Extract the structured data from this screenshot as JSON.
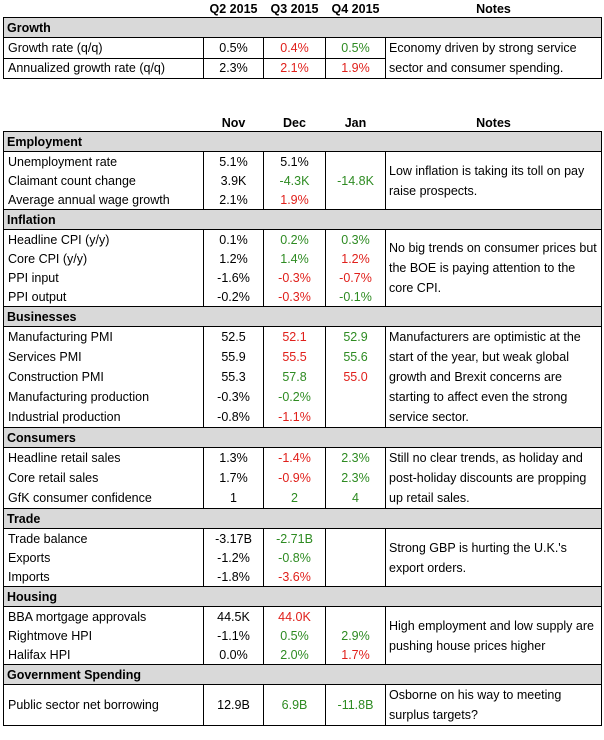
{
  "growth": {
    "section_title": "Growth",
    "columns": [
      "Q2 2015",
      "Q3 2015",
      "Q4 2015",
      "Notes"
    ],
    "rows": [
      {
        "label": "Growth rate (q/q)",
        "v1": "0.5%",
        "v2": "0.4%",
        "v3": "0.5%"
      },
      {
        "label": "Annualized growth rate (q/q)",
        "v1": "2.3%",
        "v2": "2.1%",
        "v3": "1.9%"
      }
    ],
    "note": "Economy driven by strong service sector and consumer spending."
  },
  "monthly": {
    "columns": [
      "Nov",
      "Dec",
      "Jan",
      "Notes"
    ],
    "sections": [
      {
        "title": "Employment",
        "rows": [
          {
            "label": "Unemployment rate",
            "v1": "5.1%",
            "v2": "5.1%",
            "v3": ""
          },
          {
            "label": "Claimant count change",
            "v1": "3.9K",
            "v2": "-4.3K",
            "v3": "-14.8K"
          },
          {
            "label": "Average annual wage growth",
            "v1": "2.1%",
            "v2": "1.9%",
            "v3": ""
          }
        ],
        "note": "Low inflation is taking its toll on pay raise prospects."
      },
      {
        "title": "Inflation",
        "rows": [
          {
            "label": "Headline CPI (y/y)",
            "v1": "0.1%",
            "v2": "0.2%",
            "v3": "0.3%"
          },
          {
            "label": "Core CPI (y/y)",
            "v1": "1.2%",
            "v2": "1.4%",
            "v3": "1.2%"
          },
          {
            "label": "PPI input",
            "v1": "-1.6%",
            "v2": "-0.3%",
            "v3": "-0.7%"
          },
          {
            "label": "PPI output",
            "v1": "-0.2%",
            "v2": "-0.3%",
            "v3": "-0.1%"
          }
        ],
        "note": "No big trends on consumer prices but the BOE is paying attention to the core CPI."
      },
      {
        "title": "Businesses",
        "rows": [
          {
            "label": "Manufacturing PMI",
            "v1": "52.5",
            "v2": "52.1",
            "v3": "52.9"
          },
          {
            "label": "Services PMI",
            "v1": "55.9",
            "v2": "55.5",
            "v3": "55.6"
          },
          {
            "label": "Construction PMI",
            "v1": "55.3",
            "v2": "57.8",
            "v3": "55.0"
          },
          {
            "label": "Manufacturing production",
            "v1": "-0.3%",
            "v2": "-0.2%",
            "v3": ""
          },
          {
            "label": "Industrial production",
            "v1": "-0.8%",
            "v2": "-1.1%",
            "v3": ""
          }
        ],
        "note": "Manufacturers are optimistic at the start of the year, but weak global growth and Brexit concerns are starting to affect even the strong service sector."
      },
      {
        "title": "Consumers",
        "rows": [
          {
            "label": "Headline retail sales",
            "v1": "1.3%",
            "v2": "-1.4%",
            "v3": "2.3%"
          },
          {
            "label": "Core retail sales",
            "v1": "1.7%",
            "v2": "-0.9%",
            "v3": "2.3%"
          },
          {
            "label": "GfK consumer confidence",
            "v1": "1",
            "v2": "2",
            "v3": "4"
          }
        ],
        "note": "Still no clear trends, as holiday and post-holiday discounts are propping up retail sales."
      },
      {
        "title": "Trade",
        "rows": [
          {
            "label": "Trade balance",
            "v1": "-3.17B",
            "v2": "-2.71B",
            "v3": ""
          },
          {
            "label": "Exports",
            "v1": "-1.2%",
            "v2": "-0.8%",
            "v3": ""
          },
          {
            "label": "Imports",
            "v1": "-1.8%",
            "v2": "-3.6%",
            "v3": ""
          }
        ],
        "note": "Strong GBP is hurting the U.K.'s export orders."
      },
      {
        "title": "Housing",
        "rows": [
          {
            "label": "BBA mortgage approvals",
            "v1": "44.5K",
            "v2": "44.0K",
            "v3": ""
          },
          {
            "label": "Rightmove HPI",
            "v1": "-1.1%",
            "v2": "0.5%",
            "v3": "2.9%"
          },
          {
            "label": "Halifax HPI",
            "v1": "0.0%",
            "v2": "2.0%",
            "v3": "1.7%"
          }
        ],
        "note": "High employment and low supply are pushing house prices higher"
      },
      {
        "title": "Government Spending",
        "rows": [
          {
            "label": "Public sector net borrowing",
            "v1": "12.9B",
            "v2": "6.9B",
            "v3": "-11.8B"
          }
        ],
        "note": "Osborne on his way to meeting surplus targets?"
      }
    ]
  },
  "colors": {
    "positive": "#2e8b22",
    "negative": "#e0201b",
    "section_bg": "#d9d9d9"
  }
}
